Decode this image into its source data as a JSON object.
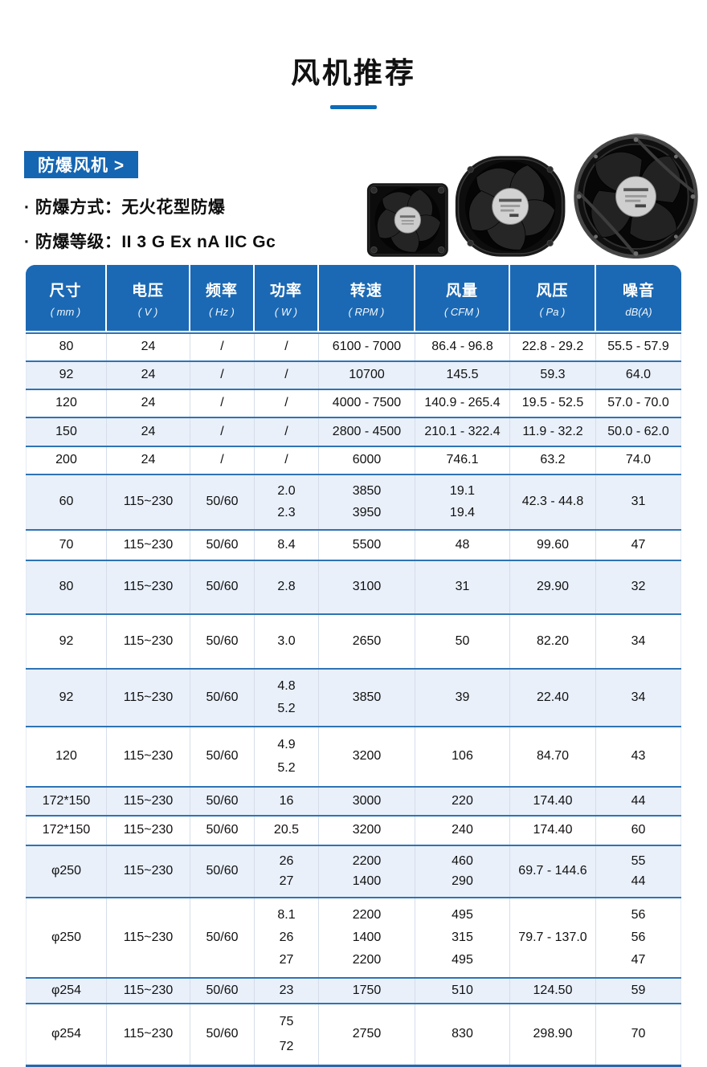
{
  "page": {
    "title": "风机推荐"
  },
  "colors": {
    "accent_blue": "#1465b2",
    "title_underline": "#0d6cb8",
    "table_header_bg": "#1b69b4",
    "row_alt_bg": "#e9f0fa",
    "row_border": "#2e74b5"
  },
  "section": {
    "label": "防爆风机 >",
    "bullets": [
      {
        "text": "· 防爆方式：无火花型防爆"
      },
      {
        "text": "· 防爆等级：II 3 G Ex nA IIC Gc"
      }
    ]
  },
  "fans": {
    "items": [
      "small-square-axial-fan-photo",
      "oval-frame-axial-fan-photo",
      "round-frame-axial-fan-photo"
    ]
  },
  "table": {
    "headers": [
      {
        "title": "尺寸",
        "unit": "( mm )"
      },
      {
        "title": "电压",
        "unit": "( V )"
      },
      {
        "title": "频率",
        "unit": "( Hz )"
      },
      {
        "title": "功率",
        "unit": "( W )"
      },
      {
        "title": "转速",
        "unit": "( RPM )"
      },
      {
        "title": "风量",
        "unit": "( CFM )"
      },
      {
        "title": "风压",
        "unit": "( Pa )"
      },
      {
        "title": "噪音",
        "unit": "dB(A)"
      }
    ],
    "rows": [
      {
        "cells": [
          "80",
          "24",
          "/",
          "/",
          "6100 - 7000",
          "86.4 - 96.8",
          "22.8 - 29.2",
          "55.5 - 57.9"
        ]
      },
      {
        "cells": [
          "92",
          "24",
          "/",
          "/",
          "10700",
          "145.5",
          "59.3",
          "64.0"
        ]
      },
      {
        "cells": [
          "120",
          "24",
          "/",
          "/",
          "4000 - 7500",
          "140.9 - 265.4",
          "19.5 - 52.5",
          "57.0 - 70.0"
        ]
      },
      {
        "cells": [
          "150",
          "24",
          "/",
          "/",
          "2800 - 4500",
          "210.1 - 322.4",
          "11.9 - 32.2",
          "50.0 - 62.0"
        ]
      },
      {
        "cells": [
          "200",
          "24",
          "/",
          "/",
          "6000",
          "746.1",
          "63.2",
          "74.0"
        ]
      },
      {
        "cells": [
          "60",
          "115~230",
          "50/60",
          [
            "2.0",
            "2.3"
          ],
          [
            "3850",
            "3950"
          ],
          [
            "19.1",
            "19.4"
          ],
          "42.3 - 44.8",
          "31"
        ]
      },
      {
        "cells": [
          "70",
          "115~230",
          "50/60",
          "8.4",
          "5500",
          "48",
          "99.60",
          "47"
        ]
      },
      {
        "cells": [
          "80",
          "115~230",
          "50/60",
          "2.8",
          "3100",
          "31",
          "29.90",
          "32"
        ]
      },
      {
        "cells": [
          "92",
          "115~230",
          "50/60",
          "3.0",
          "2650",
          "50",
          "82.20",
          "34"
        ]
      },
      {
        "cells": [
          "92",
          "115~230",
          "50/60",
          [
            "4.8",
            "5.2"
          ],
          "3850",
          "39",
          "22.40",
          "34"
        ]
      },
      {
        "cells": [
          "120",
          "115~230",
          "50/60",
          [
            "4.9",
            "5.2"
          ],
          "3200",
          "106",
          "84.70",
          "43"
        ]
      },
      {
        "cells": [
          "172*150",
          "115~230",
          "50/60",
          "16",
          "3000",
          "220",
          "174.40",
          "44"
        ]
      },
      {
        "cells": [
          "172*150",
          "115~230",
          "50/60",
          "20.5",
          "3200",
          "240",
          "174.40",
          "60"
        ]
      },
      {
        "cells": [
          "φ250",
          "115~230",
          "50/60",
          [
            "26",
            "27"
          ],
          [
            "2200",
            "1400"
          ],
          [
            "460",
            "290"
          ],
          "69.7 - 144.6",
          [
            "55",
            "44"
          ]
        ]
      },
      {
        "cells": [
          "φ250",
          "115~230",
          "50/60",
          [
            "8.1",
            "26",
            "27"
          ],
          [
            "2200",
            "1400",
            "2200"
          ],
          [
            "495",
            "315",
            "495"
          ],
          "79.7 - 137.0",
          [
            "56",
            "56",
            "47"
          ]
        ]
      },
      {
        "cells": [
          "φ254",
          "115~230",
          "50/60",
          "23",
          "1750",
          "510",
          "124.50",
          "59"
        ]
      },
      {
        "cells": [
          "φ254",
          "115~230",
          "50/60",
          [
            "75",
            "72"
          ],
          "2750",
          "830",
          "298.90",
          "70"
        ]
      }
    ]
  }
}
